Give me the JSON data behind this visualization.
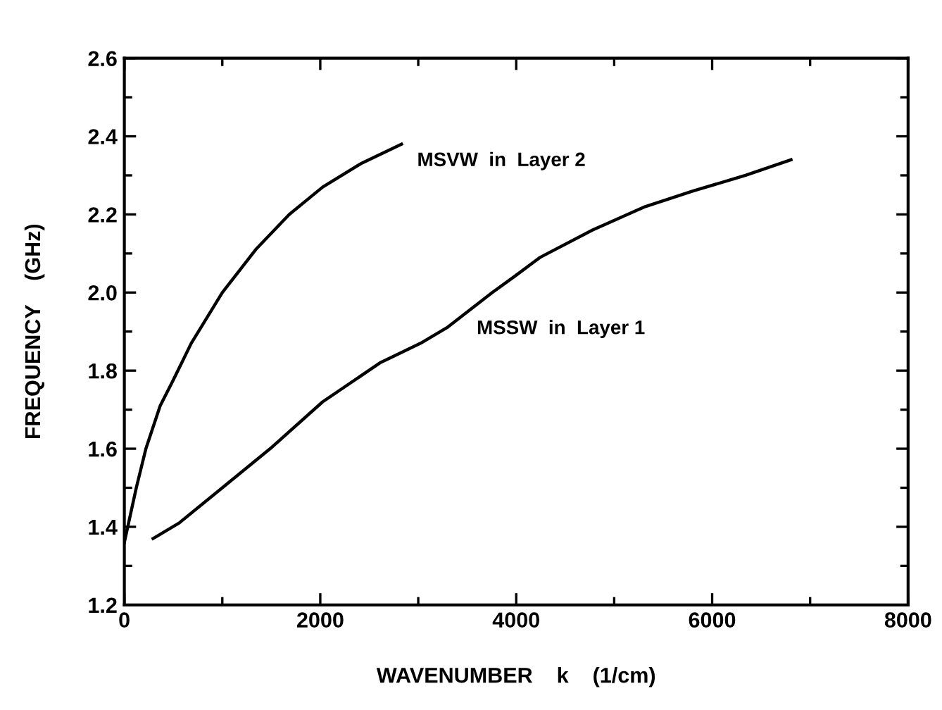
{
  "chart_data": {
    "type": "line",
    "xlabel": "WAVENUMBER    k    (1/cm)",
    "ylabel": "FREQUENCY    (GHz)",
    "xlim": [
      0,
      8000
    ],
    "xticks": [
      0,
      2000,
      4000,
      6000,
      8000
    ],
    "ylim": [
      1.2,
      2.6
    ],
    "yticks": [
      1.2,
      1.4,
      1.6,
      1.8,
      {
        "value": 2,
        "label": "2.0"
      },
      2.2,
      2.4,
      2.6
    ],
    "grid": false,
    "legend": false,
    "marker": "none",
    "line_style": "solid",
    "series": [
      {
        "name": "MSVW  in  Layer 2",
        "color": "#000000",
        "x": [
          0,
          122,
          220,
          366,
          488,
          683,
          1000,
          1341,
          1683,
          2024,
          2415,
          2829
        ],
        "values": [
          1.36,
          1.5,
          1.6,
          1.71,
          1.77,
          1.87,
          2.0,
          2.11,
          2.2,
          2.27,
          2.33,
          2.38
        ]
      },
      {
        "name": "MSSW  in  Layer 1",
        "color": "#000000",
        "x": [
          293,
          561,
          1000,
          1488,
          2024,
          2610,
          3024,
          3293,
          3756,
          3976,
          4244,
          4780,
          5317,
          5805,
          6341,
          6805
        ],
        "values": [
          1.37,
          1.41,
          1.5,
          1.6,
          1.72,
          1.82,
          1.87,
          1.91,
          2.0,
          2.04,
          2.09,
          2.16,
          2.22,
          2.26,
          2.3,
          2.34
        ]
      }
    ]
  }
}
